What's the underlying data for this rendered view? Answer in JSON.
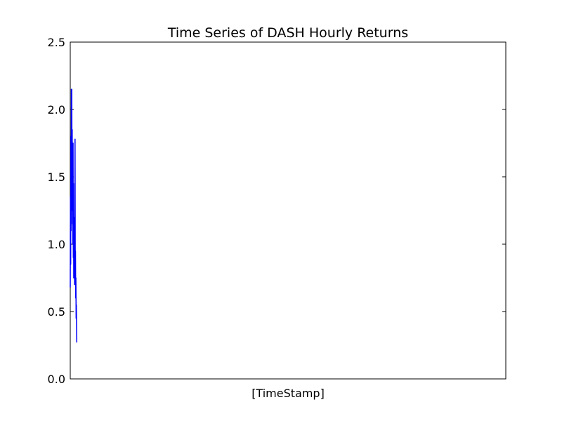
{
  "chart_data": {
    "type": "line",
    "title": "Time Series of DASH Hourly Returns",
    "xlabel": "[TimeStamp]",
    "ylabel": "",
    "ylim": [
      0,
      2.5
    ],
    "yticks": [
      0.0,
      0.5,
      1.0,
      1.5,
      2.0,
      2.5
    ],
    "ytick_labels": [
      "0.0",
      "0.5",
      "1.0",
      "1.5",
      "2.0",
      "2.5"
    ],
    "xticks": [],
    "xlim": [
      0,
      1
    ],
    "grid": false,
    "legend": "none",
    "series": [
      {
        "color": "#0000ff",
        "x": [
          0.0,
          0.0005,
          0.001,
          0.0015,
          0.002,
          0.0025,
          0.003,
          0.0035,
          0.004,
          0.0045,
          0.005,
          0.0055,
          0.006,
          0.0065,
          0.007,
          0.0075,
          0.008,
          0.0085,
          0.009,
          0.0095,
          0.01,
          0.0105,
          0.011,
          0.0115,
          0.012,
          0.0125,
          0.013,
          0.0135,
          0.014,
          0.0145,
          0.015
        ],
        "values": [
          0.68,
          1.35,
          0.85,
          1.8,
          1.1,
          2.15,
          1.25,
          2.15,
          1.55,
          1.85,
          1.15,
          1.7,
          1.0,
          1.75,
          0.9,
          1.45,
          0.75,
          1.2,
          0.85,
          0.95,
          0.7,
          0.9,
          1.78,
          0.8,
          0.95,
          0.6,
          0.75,
          0.45,
          0.55,
          0.4,
          0.27
        ]
      }
    ]
  }
}
